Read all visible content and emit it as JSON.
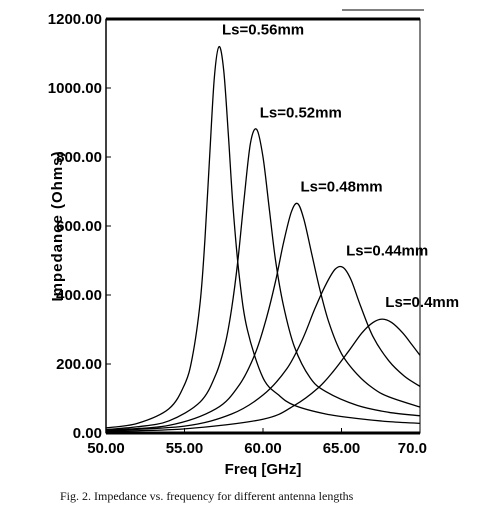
{
  "caption": "Fig. 2. Impedance vs. frequency for different antenna lengths",
  "chart_data": {
    "type": "line",
    "xlabel": "Freq [GHz]",
    "ylabel": "Impedance (Ohms)",
    "xlim": [
      50,
      70
    ],
    "ylim": [
      0,
      1200
    ],
    "x_ticks": [
      "50.00",
      "55.00",
      "60.00",
      "65.00",
      "70.0"
    ],
    "y_ticks": [
      "0.00",
      "200.00",
      "400.00",
      "600.00",
      "800.00",
      "1000.00",
      "1200.00"
    ],
    "grid": false,
    "series": [
      {
        "name": "Ls=0.56mm",
        "x": [
          50,
          52,
          54,
          55,
          55.5,
          56,
          56.3,
          56.6,
          56.9,
          57.2,
          57.5,
          57.8,
          58.1,
          58.5,
          59,
          60,
          61,
          62,
          64,
          66,
          68,
          70
        ],
        "y": [
          15,
          28,
          70,
          140,
          220,
          380,
          560,
          800,
          1030,
          1120,
          1050,
          860,
          650,
          450,
          300,
          160,
          110,
          80,
          55,
          42,
          33,
          28
        ]
      },
      {
        "name": "Ls=0.52mm",
        "x": [
          50,
          52,
          54,
          56,
          57,
          57.6,
          58,
          58.4,
          58.8,
          59.2,
          59.6,
          60,
          60.4,
          60.8,
          61.3,
          62,
          63,
          64,
          66,
          68,
          70
        ],
        "y": [
          10,
          18,
          35,
          90,
          170,
          260,
          360,
          500,
          680,
          840,
          880,
          800,
          650,
          500,
          370,
          250,
          160,
          120,
          80,
          60,
          50
        ]
      },
      {
        "name": "Ls=0.48mm",
        "x": [
          50,
          54,
          57,
          58.5,
          59.5,
          60.2,
          60.8,
          61.3,
          61.8,
          62.2,
          62.6,
          63.1,
          63.6,
          64.2,
          65,
          66,
          67,
          68,
          70
        ],
        "y": [
          8,
          22,
          70,
          140,
          230,
          330,
          440,
          550,
          640,
          665,
          620,
          520,
          420,
          320,
          230,
          170,
          130,
          105,
          75
        ]
      },
      {
        "name": "Ls=0.44mm",
        "x": [
          50,
          55,
          58,
          60,
          61.5,
          62.5,
          63.3,
          64,
          64.6,
          65.1,
          65.6,
          66.2,
          67,
          68,
          69,
          70
        ],
        "y": [
          7,
          20,
          55,
          110,
          185,
          270,
          360,
          430,
          475,
          480,
          445,
          370,
          280,
          210,
          165,
          135
        ]
      },
      {
        "name": "Ls=0.4mm",
        "x": [
          50,
          55,
          60,
          62,
          63.5,
          64.5,
          65.5,
          66.3,
          67,
          67.6,
          68.2,
          68.9,
          69.5,
          70
        ],
        "y": [
          5,
          12,
          40,
          80,
          130,
          180,
          240,
          290,
          320,
          330,
          320,
          290,
          255,
          225
        ]
      }
    ]
  }
}
